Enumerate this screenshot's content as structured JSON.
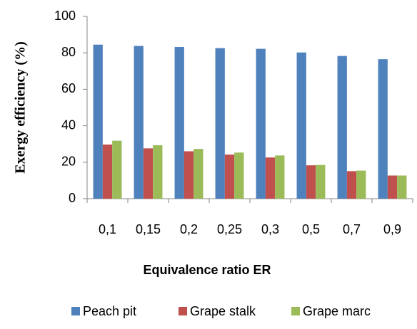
{
  "chart_data": {
    "type": "bar",
    "xlabel": "Equivalence ratio ER",
    "ylabel": "Exergy efficiency (%)",
    "categories": [
      "0,1",
      "0,15",
      "0,2",
      "0,25",
      "0,3",
      "0,5",
      "0,7",
      "0,9"
    ],
    "series": [
      {
        "name": "Peach pit",
        "color": "#4f81bd",
        "values": [
          84.5,
          83.8,
          83.2,
          82.6,
          82.2,
          80.2,
          78.3,
          76.5
        ]
      },
      {
        "name": "Grape stalk",
        "color": "#c0504d",
        "values": [
          29.7,
          27.6,
          26,
          24.2,
          22.6,
          18.3,
          15.1,
          12.7
        ]
      },
      {
        "name": "Grape marc",
        "color": "#9bbb59",
        "values": [
          31.8,
          29.3,
          27.3,
          25.3,
          23.7,
          18.5,
          15.4,
          12.7
        ]
      }
    ],
    "ylim": [
      0,
      100
    ],
    "yticks": [
      0,
      20,
      40,
      60,
      80,
      100
    ],
    "grid": false,
    "legend": "bottom"
  }
}
